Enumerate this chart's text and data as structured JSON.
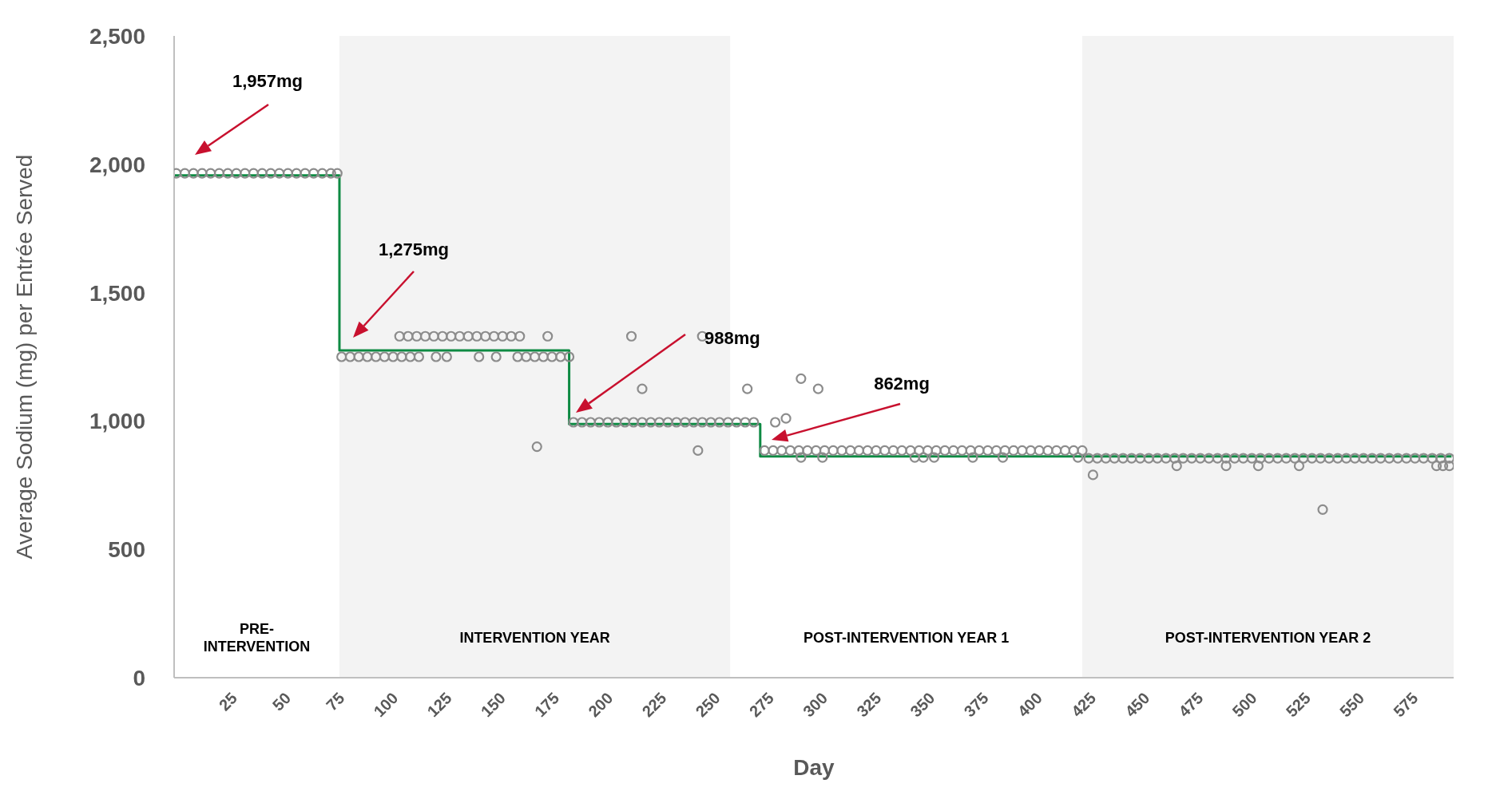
{
  "chart_data": {
    "type": "scatter",
    "xlabel": "Day",
    "ylabel": "Average Sodium (mg) per Entrée Served",
    "marker": "circle",
    "xlim": [
      0,
      596
    ],
    "xticks": [
      25,
      50,
      75,
      100,
      125,
      150,
      175,
      200,
      225,
      250,
      275,
      300,
      325,
      350,
      375,
      400,
      425,
      450,
      475,
      500,
      525,
      550,
      575
    ],
    "ylim": [
      0,
      2500
    ],
    "yticks": [
      {
        "value": 0,
        "label": "0"
      },
      {
        "value": 500,
        "label": "500"
      },
      {
        "value": 1000,
        "label": "1,000"
      },
      {
        "value": 1500,
        "label": "1,500"
      },
      {
        "value": 2000,
        "label": "2,000"
      },
      {
        "value": 2500,
        "label": "2,500"
      }
    ],
    "bands": [
      {
        "axis": "x",
        "from": 77,
        "to": 259,
        "label": "INTERVENTION YEAR",
        "color": "#f3f3f3"
      },
      {
        "axis": "x",
        "from": 423,
        "to": 596,
        "label": "POST-INTERVENTION YEAR 2",
        "color": "#f3f3f3"
      }
    ],
    "annotations": [
      "PRE-INTERVENTION",
      "POST-INTERVENTION YEAR 1",
      "1,957mg",
      "1,275mg",
      "988mg",
      "862mg"
    ],
    "series": [
      {
        "color": "#8c8c8c",
        "x": [
          1,
          5,
          9,
          13,
          17,
          21,
          25,
          29,
          33,
          37,
          41,
          45,
          49,
          53,
          57,
          61,
          65,
          69,
          73,
          76
        ],
        "values": [
          1965,
          1965,
          1965,
          1965,
          1965,
          1965,
          1965,
          1965,
          1965,
          1965,
          1965,
          1965,
          1965,
          1965,
          1965,
          1965,
          1965,
          1965,
          1965,
          1965
        ]
      },
      {
        "color": "#8c8c8c",
        "x": [
          78,
          82,
          86,
          90,
          94,
          98,
          102,
          106,
          110,
          114,
          122,
          127,
          142,
          150,
          160,
          164,
          168,
          172,
          176,
          180,
          184
        ],
        "values": [
          1250,
          1250,
          1250,
          1250,
          1250,
          1250,
          1250,
          1250,
          1250,
          1250,
          1250,
          1250,
          1250,
          1250,
          1250,
          1250,
          1250,
          1250,
          1250,
          1250,
          1250
        ]
      },
      {
        "color": "#8c8c8c",
        "x": [
          105,
          109,
          113,
          117,
          121,
          125,
          129,
          133,
          137,
          141,
          145,
          149,
          153,
          157,
          161,
          174,
          213,
          246
        ],
        "values": [
          1330,
          1330,
          1330,
          1330,
          1330,
          1330,
          1330,
          1330,
          1330,
          1330,
          1330,
          1330,
          1330,
          1330,
          1330,
          1330,
          1330,
          1330
        ]
      },
      {
        "color": "#8c8c8c",
        "x": [
          169,
          218,
          244,
          267,
          280,
          285,
          292,
          300,
          428,
          535
        ],
        "values": [
          900,
          1125,
          885,
          1125,
          995,
          1010,
          1165,
          1125,
          790,
          655
        ]
      },
      {
        "color": "#8c8c8c",
        "x": [
          186,
          190,
          194,
          198,
          202,
          206,
          210,
          214,
          218,
          222,
          226,
          230,
          234,
          238,
          242,
          246,
          250,
          254,
          258,
          262,
          266,
          270
        ],
        "values": [
          995,
          995,
          995,
          995,
          995,
          995,
          995,
          995,
          995,
          995,
          995,
          995,
          995,
          995,
          995,
          995,
          995,
          995,
          995,
          995,
          995,
          995
        ]
      },
      {
        "color": "#8c8c8c",
        "x": [
          275,
          279,
          283,
          287,
          291,
          295,
          299,
          303,
          307,
          311,
          315,
          319,
          323,
          327,
          331,
          335,
          339,
          343,
          347,
          351,
          355,
          359,
          363,
          367,
          371,
          375,
          379,
          383,
          387,
          391,
          395,
          399,
          403,
          407,
          411,
          415,
          419,
          423
        ],
        "values": [
          885,
          885,
          885,
          885,
          885,
          885,
          885,
          885,
          885,
          885,
          885,
          885,
          885,
          885,
          885,
          885,
          885,
          885,
          885,
          885,
          885,
          885,
          885,
          885,
          885,
          885,
          885,
          885,
          885,
          885,
          885,
          885,
          885,
          885,
          885,
          885,
          885,
          885
        ]
      },
      {
        "color": "#8c8c8c",
        "x": [
          292,
          302,
          345,
          349,
          354,
          372,
          386,
          421
        ],
        "values": [
          858,
          858,
          858,
          858,
          858,
          858,
          858,
          858
        ]
      },
      {
        "color": "#8c8c8c",
        "x": [
          426,
          430,
          434,
          438,
          442,
          446,
          450,
          454,
          458,
          462,
          466,
          470,
          474,
          478,
          482,
          486,
          490,
          494,
          498,
          502,
          506,
          510,
          514,
          518,
          522,
          526,
          530,
          534,
          538,
          542,
          546,
          550,
          554,
          558,
          562,
          566,
          570,
          574,
          578,
          582,
          586,
          590,
          594
        ],
        "values": [
          855,
          855,
          855,
          855,
          855,
          855,
          855,
          855,
          855,
          855,
          855,
          855,
          855,
          855,
          855,
          855,
          855,
          855,
          855,
          855,
          855,
          855,
          855,
          855,
          855,
          855,
          855,
          855,
          855,
          855,
          855,
          855,
          855,
          855,
          855,
          855,
          855,
          855,
          855,
          855,
          855,
          855,
          855
        ]
      },
      {
        "color": "#8c8c8c",
        "x": [
          467,
          490,
          505,
          524,
          588,
          591,
          594
        ],
        "values": [
          825,
          825,
          825,
          825,
          825,
          825,
          825
        ]
      },
      {
        "type": "step",
        "marker": "none",
        "color": "#0e8a43",
        "x": [
          0,
          77,
          184,
          273,
          595
        ],
        "values": [
          1957,
          1275,
          988,
          862,
          862
        ]
      }
    ]
  }
}
